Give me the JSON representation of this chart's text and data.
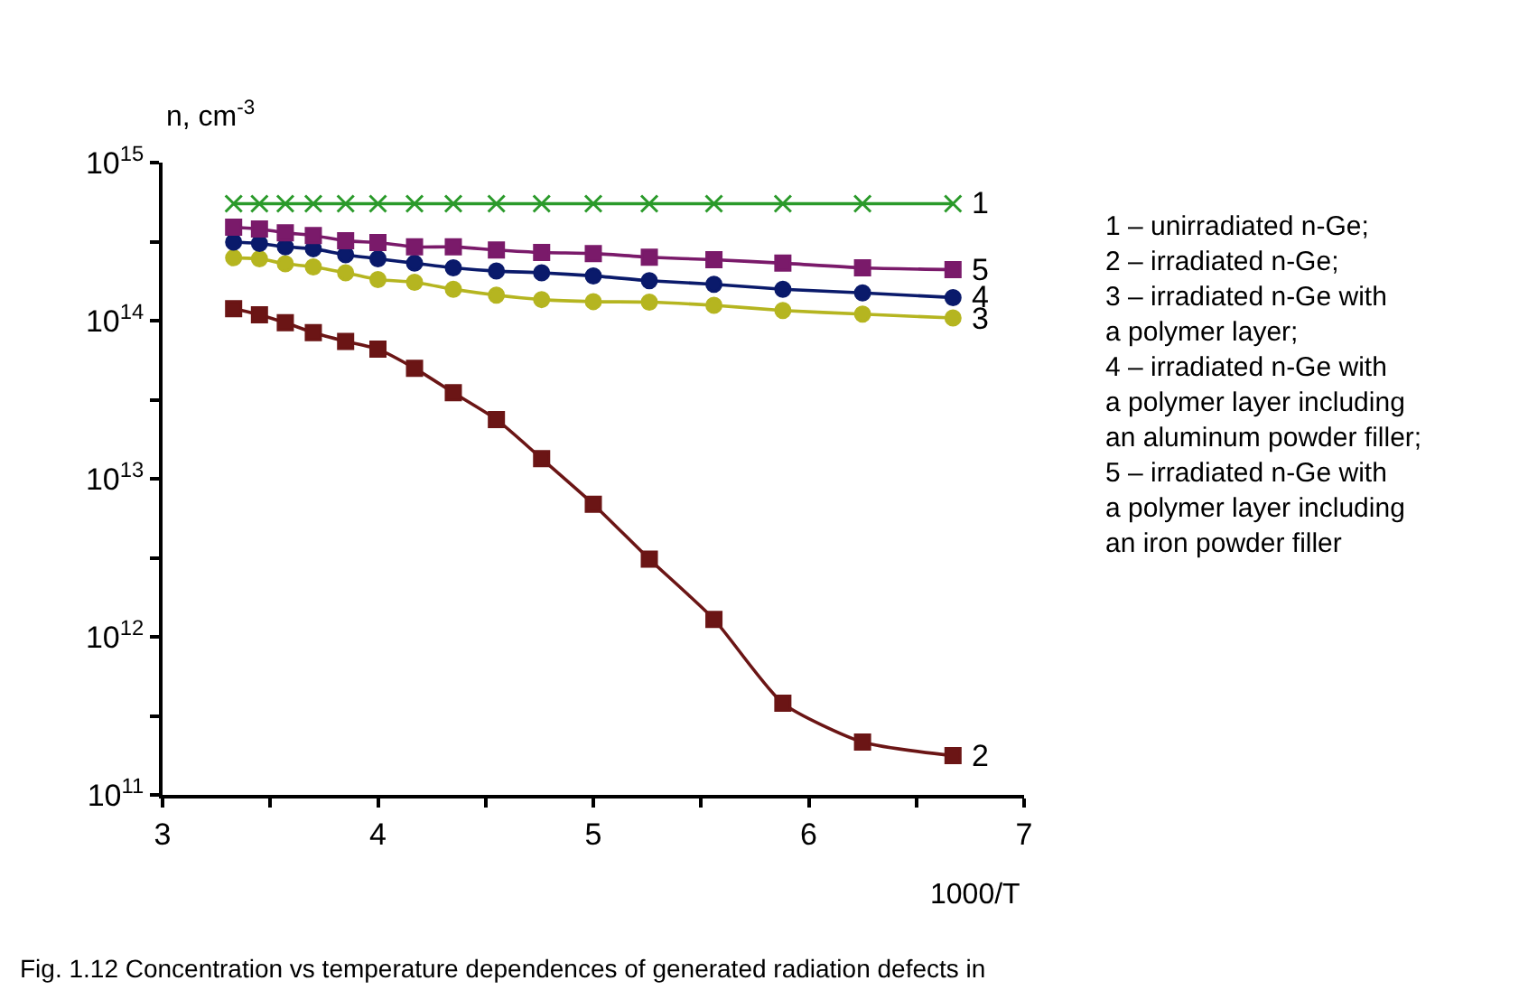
{
  "chart_data": {
    "type": "line",
    "ylabel": "n, cm$^{-3}$",
    "xlabel": "1000/T",
    "x": [
      3.33,
      3.45,
      3.57,
      3.7,
      3.85,
      4.0,
      4.17,
      4.35,
      4.55,
      4.76,
      5.0,
      5.26,
      5.56,
      5.88,
      6.25,
      6.67
    ],
    "series": [
      {
        "name": "1",
        "color": "#2a9a2a",
        "marker": "cross",
        "values": [
          550000000000000.0,
          550000000000000.0,
          550000000000000.0,
          550000000000000.0,
          550000000000000.0,
          550000000000000.0,
          550000000000000.0,
          550000000000000.0,
          550000000000000.0,
          550000000000000.0,
          550000000000000.0,
          550000000000000.0,
          550000000000000.0,
          550000000000000.0,
          550000000000000.0,
          550000000000000.0
        ]
      },
      {
        "name": "2",
        "color": "#6b1515",
        "marker": "square",
        "values": [
          119000000000000.0,
          109000000000000.0,
          97000000000000.0,
          84000000000000.0,
          74000000000000.0,
          66000000000000.0,
          50000000000000.0,
          35000000000000.0,
          23700000000000.0,
          13400000000000.0,
          6900000000000.0,
          3100000000000.0,
          1290000000000.0,
          380000000000.0,
          216000000000.0,
          177000000000.0
        ]
      },
      {
        "name": "3",
        "color": "#b5b520",
        "marker": "circle",
        "values": [
          250000000000000.0,
          246000000000000.0,
          229000000000000.0,
          219000000000000.0,
          201000000000000.0,
          182000000000000.0,
          175000000000000.0,
          158000000000000.0,
          145000000000000.0,
          136000000000000.0,
          132000000000000.0,
          131000000000000.0,
          125000000000000.0,
          116000000000000.0,
          110000000000000.0,
          104000000000000.0
        ]
      },
      {
        "name": "4",
        "color": "#0a1a6b",
        "marker": "circle",
        "values": [
          314000000000000.0,
          308000000000000.0,
          293000000000000.0,
          285000000000000.0,
          261000000000000.0,
          246000000000000.0,
          231000000000000.0,
          216000000000000.0,
          206000000000000.0,
          201000000000000.0,
          192000000000000.0,
          179000000000000.0,
          170000000000000.0,
          158000000000000.0,
          150000000000000.0,
          140000000000000.0
        ]
      },
      {
        "name": "5",
        "color": "#7a1a6a",
        "marker": "square",
        "values": [
          390000000000000.0,
          380000000000000.0,
          360000000000000.0,
          346000000000000.0,
          320000000000000.0,
          312000000000000.0,
          293000000000000.0,
          293000000000000.0,
          280000000000000.0,
          270000000000000.0,
          266000000000000.0,
          252000000000000.0,
          243000000000000.0,
          231000000000000.0,
          216000000000000.0,
          210000000000000.0
        ]
      }
    ],
    "log": "y",
    "grid": false,
    "legend": false,
    "xlim": [
      3,
      7
    ],
    "xticks": [
      3,
      {
        "value": 3.5,
        "label": null
      },
      4,
      {
        "value": 4.5,
        "label": null
      },
      5,
      {
        "value": 5.5,
        "label": null
      },
      6,
      {
        "value": 6.5,
        "label": null
      },
      7
    ],
    "ylim": [
      100000000000.0,
      1000000000000000.0
    ],
    "yticks": [
      {
        "value": 100000000000.0,
        "label": "10$^{11}$"
      },
      {
        "value": 316000000000.0,
        "label": null
      },
      {
        "value": 1000000000000.0,
        "label": "10$^{12}$"
      },
      {
        "value": 3160000000000.0,
        "label": null
      },
      {
        "value": 10000000000000.0,
        "label": "10$^{13}$"
      },
      {
        "value": 31600000000000.0,
        "label": null
      },
      {
        "value": 100000000000000.0,
        "label": "10$^{14}$"
      },
      {
        "value": 316000000000000.0,
        "label": null
      },
      {
        "value": 1000000000000000.0,
        "label": "10$^{15}$"
      }
    ],
    "annotations": [
      "1 – unirradiated n-Ge;\n2 – irradiated n-Ge;\n3 – irradiated n-Ge with\na polymer layer;\n4 – irradiated n-Ge with\na polymer layer including\nan aluminum powder filler;\n5 – irradiated n-Ge with\na polymer layer including\nan iron powder filler",
      "Fig. 1.12 Concentration vs temperature dependences of generated radiation defects in"
    ]
  }
}
